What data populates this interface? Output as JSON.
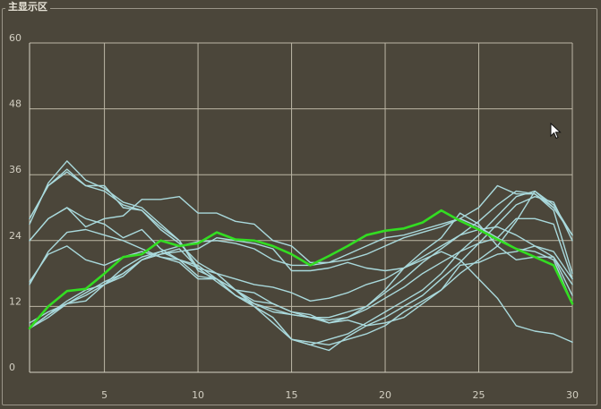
{
  "panel": {
    "title": "主显示区"
  },
  "icons": {
    "cursor": "mouse-pointer-icon"
  },
  "chart_data": {
    "type": "line",
    "title": "",
    "xlabel": "",
    "ylabel": "",
    "xlim": [
      1,
      30
    ],
    "ylim": [
      0,
      60
    ],
    "grid": true,
    "legend": "none",
    "x_ticks": [
      5,
      10,
      15,
      20,
      25,
      30
    ],
    "y_ticks": [
      0,
      12,
      24,
      36,
      48,
      60
    ],
    "x": [
      1,
      2,
      3,
      4,
      5,
      6,
      7,
      8,
      9,
      10,
      11,
      12,
      13,
      14,
      15,
      16,
      17,
      18,
      19,
      20,
      21,
      22,
      23,
      24,
      25,
      26,
      27,
      28,
      29,
      30
    ],
    "series": [
      {
        "color": "#33dd22",
        "highlight": true,
        "values": [
          8,
          12,
          14.8,
          15.2,
          18,
          21,
          21.5,
          24,
          23,
          23.5,
          25.5,
          24.2,
          24,
          23,
          21.5,
          19.5,
          21.2,
          23,
          25,
          25.8,
          26.2,
          27.3,
          29.5,
          27.6,
          26,
          24.2,
          22.5,
          21,
          19.5,
          12.5
        ]
      },
      {
        "color": "#a9d9dc",
        "values": [
          8,
          10.5,
          13,
          15,
          16,
          18,
          20.5,
          22,
          23,
          23.8,
          24,
          23.5,
          22.5,
          20.5,
          19.5,
          19.5,
          20,
          21.5,
          23,
          24.5,
          25,
          26,
          27,
          28,
          26.5,
          24.5,
          22.5,
          22,
          20.5,
          12.5
        ]
      },
      {
        "color": "#a9d9dc",
        "values": [
          28,
          34,
          36.5,
          34,
          33,
          30.5,
          29.5,
          26.5,
          24,
          18.5,
          17,
          14,
          12,
          10,
          6,
          5,
          4,
          6.5,
          8.5,
          10,
          12,
          14,
          17,
          20,
          23.5,
          27,
          30.5,
          32,
          31,
          24
        ]
      },
      {
        "color": "#a9d9dc",
        "values": [
          27,
          34.5,
          38.5,
          35,
          33.5,
          31,
          30,
          27,
          24,
          19,
          16.5,
          14,
          12,
          10,
          6,
          5.5,
          5,
          6,
          7,
          8.5,
          11,
          13,
          15,
          18,
          20.5,
          23,
          27.5,
          33,
          30,
          25
        ]
      },
      {
        "color": "#a9d9dc",
        "values": [
          28,
          34,
          37,
          34,
          34,
          30,
          29.5,
          26,
          23.5,
          20,
          18,
          15,
          12,
          9,
          6,
          5,
          6,
          7,
          9,
          11,
          13,
          15,
          18,
          22,
          25,
          28.5,
          32,
          33,
          30.5,
          25
        ]
      },
      {
        "color": "#a9d9dc",
        "values": [
          24,
          28,
          30,
          26.5,
          28,
          28.5,
          31.5,
          31.5,
          32,
          29,
          29,
          27.5,
          27,
          24,
          23,
          20,
          20,
          20.5,
          21.5,
          23,
          24.5,
          25.5,
          26.5,
          28,
          30,
          34,
          32.5,
          32.5,
          29.5,
          18
        ]
      },
      {
        "color": "#a9d9dc",
        "values": [
          24,
          28,
          30,
          28,
          27,
          24.5,
          26,
          22.5,
          20.5,
          19,
          18,
          17,
          16,
          15.5,
          14.5,
          13,
          13.5,
          14.5,
          16,
          17,
          19,
          21,
          23,
          25,
          27.5,
          30.5,
          33,
          32.5,
          30,
          25
        ]
      },
      {
        "color": "#a9d9dc",
        "values": [
          16.5,
          21.5,
          23,
          20.5,
          19.5,
          21,
          22,
          21,
          20,
          17,
          17,
          15,
          13,
          12.5,
          11,
          10,
          9.5,
          10,
          11.5,
          13.5,
          15.5,
          18,
          20,
          22,
          23.5,
          24.5,
          28,
          28,
          27,
          17
        ]
      },
      {
        "color": "#a9d9dc",
        "values": [
          16,
          22,
          25.5,
          26,
          25,
          24,
          22.5,
          21,
          20.5,
          19.5,
          17,
          14,
          12.5,
          11,
          10.5,
          10,
          9,
          10,
          12,
          15,
          19,
          22,
          24.5,
          29,
          27,
          23,
          20.5,
          21,
          21,
          16
        ]
      },
      {
        "color": "#a9d9dc",
        "values": [
          8,
          10.5,
          12.5,
          13,
          16,
          17.5,
          20.5,
          21.5,
          22,
          22.5,
          24.5,
          24,
          23.5,
          22.5,
          18.5,
          18.5,
          19,
          20,
          19,
          18.5,
          19,
          20.5,
          22,
          20.5,
          17,
          13.5,
          8.5,
          7.5,
          7,
          5.5
        ]
      },
      {
        "color": "#a9d9dc",
        "values": [
          9,
          11,
          12.5,
          14,
          16,
          19,
          21,
          22,
          20.5,
          17.5,
          17,
          15,
          12.5,
          11.5,
          10.5,
          10,
          10,
          11,
          12,
          14.5,
          17,
          20,
          22.5,
          25,
          26,
          26.5,
          25,
          23,
          21,
          14
        ]
      },
      {
        "color": "#a9d9dc",
        "values": [
          8,
          10,
          12.5,
          14.5,
          16.5,
          18,
          20.5,
          21.5,
          22.5,
          19,
          18,
          15,
          14.5,
          12.5,
          11,
          10.5,
          9,
          9.5,
          8.5,
          9,
          10,
          12.5,
          15,
          19.5,
          20,
          21.5,
          22,
          23,
          22,
          17
        ]
      }
    ]
  }
}
